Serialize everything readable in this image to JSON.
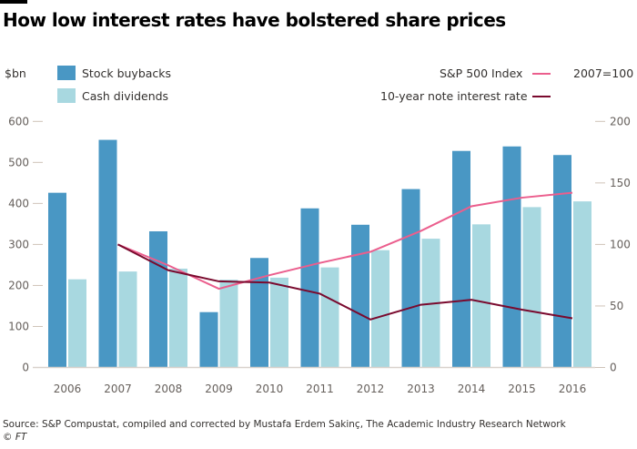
{
  "title": "How low interest rates have bolstered share prices",
  "legend": {
    "left_unit": "$bn",
    "buybacks": "Stock buybacks",
    "dividends": "Cash dividends",
    "sp500": "S&P 500 Index",
    "sp500_base": "2007=100",
    "rate": "10-year note interest rate"
  },
  "source": "Source: S&P Compustat, compiled and corrected by Mustafa Erdem Sakinç, The Academic Industry Research Network",
  "copyright": "© FT",
  "colors": {
    "buybacks": "#4997c4",
    "dividends": "#a8d8e0",
    "sp500": "#eb5e8d",
    "rate": "#7a0a2e"
  },
  "chart_data": {
    "type": "bar+line",
    "title": "How low interest rates have bolstered share prices",
    "categories": [
      "2006",
      "2007",
      "2008",
      "2009",
      "2010",
      "2011",
      "2012",
      "2013",
      "2014",
      "2015",
      "2016"
    ],
    "left_axis": {
      "label": "$bn",
      "ylim": [
        0,
        600
      ],
      "ticks": [
        0,
        100,
        200,
        300,
        400,
        500,
        600
      ]
    },
    "right_axis": {
      "label": "2007=100",
      "ylim": [
        0,
        200
      ],
      "ticks": [
        0,
        50,
        100,
        150,
        200
      ]
    },
    "series": [
      {
        "name": "Stock buybacks",
        "type": "bar",
        "axis": "left",
        "values": [
          426,
          555,
          332,
          135,
          267,
          388,
          348,
          435,
          528,
          539,
          518
        ]
      },
      {
        "name": "Cash dividends",
        "type": "bar",
        "axis": "left",
        "values": [
          215,
          234,
          241,
          214,
          219,
          244,
          286,
          314,
          349,
          391,
          405
        ]
      },
      {
        "name": "S&P 500 Index",
        "type": "line",
        "axis": "right",
        "values": [
          null,
          100,
          83,
          64,
          75,
          85,
          94,
          111,
          131,
          138,
          142
        ]
      },
      {
        "name": "10-year note interest rate",
        "type": "line",
        "axis": "right",
        "values": [
          null,
          100,
          79,
          70,
          69,
          60,
          39,
          51,
          55,
          47,
          40
        ]
      }
    ],
    "grid": false,
    "legend": "top"
  }
}
